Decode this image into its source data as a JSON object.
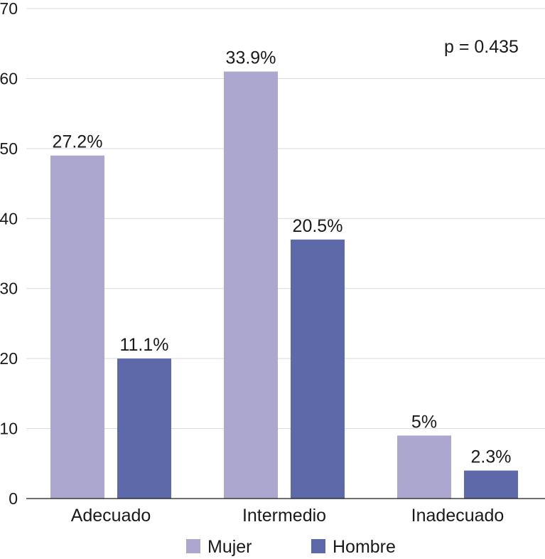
{
  "chart_data": {
    "type": "bar",
    "title": "",
    "xlabel": "",
    "ylabel": "",
    "ylim": [
      0,
      70
    ],
    "yticks": [
      0,
      10,
      20,
      30,
      40,
      50,
      60,
      70
    ],
    "grid": true,
    "categories": [
      "Adecuado",
      "Intermedio",
      "Inadecuado"
    ],
    "series": [
      {
        "name": "Mujer",
        "color": "#aba7cf",
        "values": [
          49,
          61,
          9
        ],
        "labels": [
          "27.2%",
          "33.9%",
          "5%"
        ]
      },
      {
        "name": "Hombre",
        "color": "#5e69aa",
        "values": [
          20,
          37,
          4
        ],
        "labels": [
          "11.1%",
          "20.5%",
          "2.3%"
        ]
      }
    ],
    "annotation": "p = 0.435",
    "legend_position": "bottom"
  }
}
